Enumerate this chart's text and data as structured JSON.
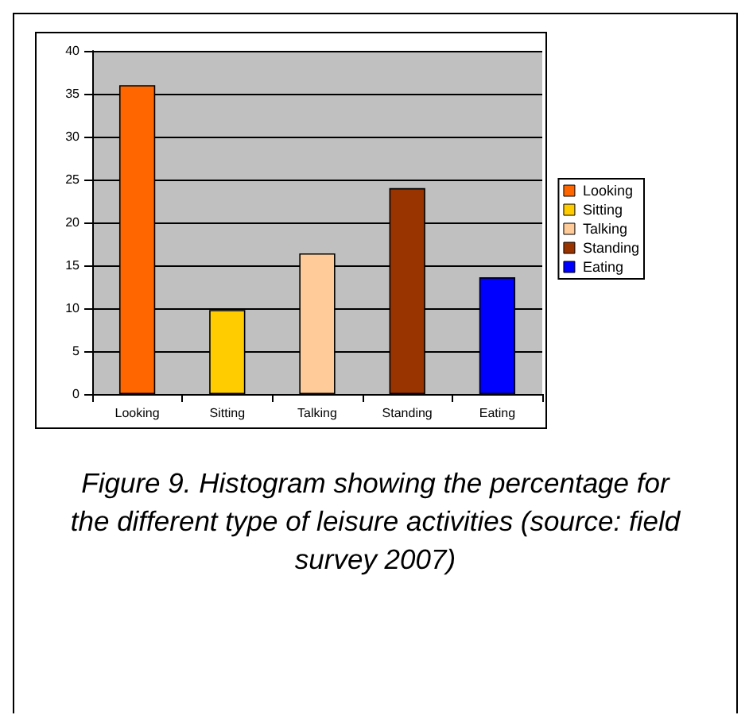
{
  "chart_data": {
    "type": "bar",
    "categories": [
      "Looking",
      "Sitting",
      "Talking",
      "Standing",
      "Eating"
    ],
    "series": [
      {
        "name": "Looking",
        "color": "#ff6600",
        "values": [
          36,
          null,
          null,
          null,
          null
        ]
      },
      {
        "name": "Sitting",
        "color": "#ffcc00",
        "values": [
          null,
          9.8,
          null,
          null,
          null
        ]
      },
      {
        "name": "Talking",
        "color": "#ffcc99",
        "values": [
          null,
          null,
          16.4,
          null,
          null
        ]
      },
      {
        "name": "Standing",
        "color": "#993300",
        "values": [
          null,
          null,
          null,
          24,
          null
        ]
      },
      {
        "name": "Eating",
        "color": "#0000ff",
        "values": [
          null,
          null,
          null,
          null,
          13.6
        ]
      }
    ],
    "stacked": true,
    "ylim": [
      0,
      40
    ],
    "yticks": [
      0,
      5,
      10,
      15,
      20,
      25,
      30,
      35,
      40
    ],
    "grid": "y",
    "legend": "right",
    "annotations": [
      "Figure 9. Histogram showing the percentage for the different type of leisure activities (source: field survey 2007)"
    ]
  }
}
